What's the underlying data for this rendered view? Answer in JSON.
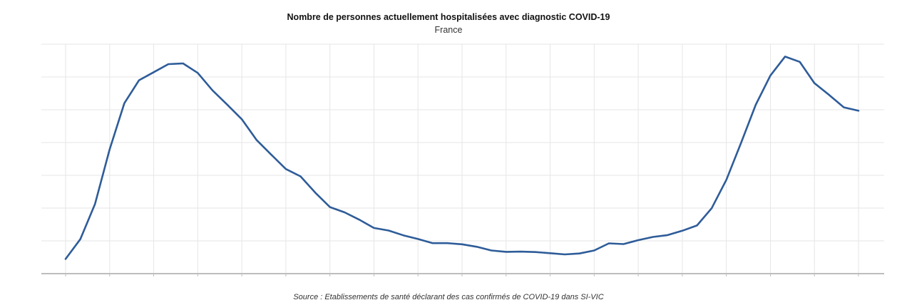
{
  "title": "Nombre de personnes actuellement hospitalisées avec diagnostic COVID-19",
  "subtitle": "France",
  "source": "Source : Etablissements de santé déclarant des cas confirmés de COVID-19 dans SI-VIC",
  "colors": {
    "line": "#2e5c99",
    "grid": "#e6e6e6",
    "axis": "#bdbdbd"
  },
  "chart_data": {
    "type": "line",
    "title": "Nombre de personnes actuellement hospitalisées avec diagnostic COVID-19",
    "subtitle": "France",
    "xlabel": "",
    "ylabel": "",
    "grid": true,
    "x_ticks": 19,
    "y_gridlines": 7,
    "series": [
      {
        "values": [
          0.064,
          0.15,
          0.303,
          0.542,
          0.743,
          0.843,
          0.878,
          0.913,
          0.916,
          0.875,
          0.799,
          0.737,
          0.673,
          0.583,
          0.519,
          0.456,
          0.424,
          0.353,
          0.29,
          0.267,
          0.235,
          0.199,
          0.188,
          0.167,
          0.151,
          0.133,
          0.133,
          0.128,
          0.117,
          0.101,
          0.095,
          0.096,
          0.094,
          0.089,
          0.084,
          0.088,
          0.101,
          0.132,
          0.129,
          0.146,
          0.16,
          0.168,
          0.187,
          0.21,
          0.285,
          0.409,
          0.57,
          0.736,
          0.863,
          0.946,
          0.923,
          0.83,
          0.779,
          0.725,
          0.71
        ]
      }
    ]
  }
}
